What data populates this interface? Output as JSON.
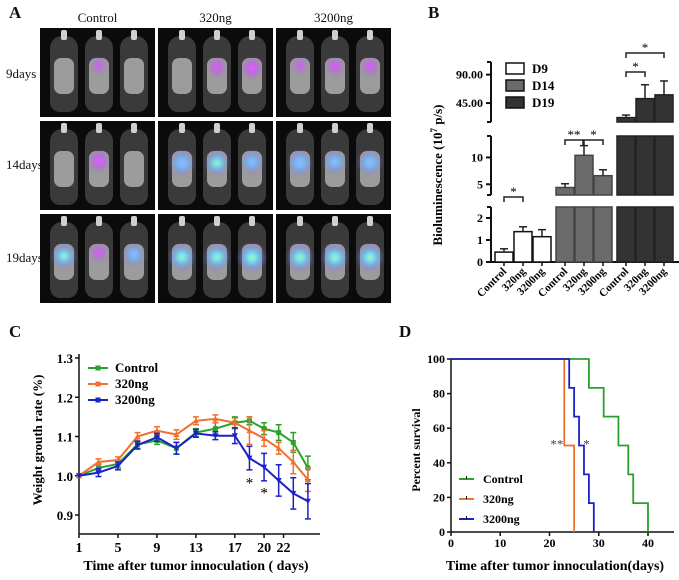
{
  "panels": {
    "A": {
      "letter": "A",
      "columns": [
        "Control",
        "320ng",
        "3200ng"
      ],
      "rows": [
        "9days",
        "14days",
        "19days"
      ],
      "signal_intensity": [
        [
          [
            0.05,
            0.15,
            0.05
          ],
          [
            0.1,
            0.35,
            0.45
          ],
          [
            0.15,
            0.3,
            0.25
          ]
        ],
        [
          [
            0.05,
            0.45,
            0.05
          ],
          [
            0.7,
            0.75,
            0.6
          ],
          [
            0.7,
            0.6,
            0.65
          ]
        ],
        [
          [
            0.75,
            0.3,
            0.55
          ],
          [
            0.85,
            0.85,
            0.95
          ],
          [
            0.9,
            0.9,
            0.9
          ]
        ]
      ]
    },
    "B": {
      "letter": "B"
    },
    "C": {
      "letter": "C"
    },
    "D": {
      "letter": "D"
    }
  },
  "chart_data": [
    {
      "id": "B",
      "type": "bar",
      "ylabel": "Bioluminescence (10^7 p/s)",
      "ylabel_base": "Bioluminescence (10",
      "ylabel_exp": "7",
      "ylabel_tail": " p/s)",
      "broken_axis_segments": [
        {
          "range": [
            0,
            2.5
          ],
          "ticks": [
            "0",
            "1",
            "2"
          ],
          "tick_values": [
            0,
            1,
            2
          ]
        },
        {
          "range": [
            3,
            14
          ],
          "ticks": [
            "5",
            "10"
          ],
          "tick_values": [
            5,
            10
          ]
        },
        {
          "range": [
            15,
            110
          ],
          "ticks": [
            "45.00",
            "90.00"
          ],
          "tick_values": [
            45,
            90
          ]
        }
      ],
      "groups": [
        "D9",
        "D14",
        "D19"
      ],
      "categories": [
        "Control",
        "320ng",
        "3200ng",
        "Control",
        "320ng",
        "3200ng",
        "Control",
        "320ng",
        "3200ng"
      ],
      "legend": [
        {
          "name": "D9",
          "color": "#ffffff"
        },
        {
          "name": "D14",
          "color": "#6b6b6b"
        },
        {
          "name": "D19",
          "color": "#333333"
        }
      ],
      "legend_position": "top-left",
      "series": [
        {
          "name": "D9",
          "color": "#ffffff",
          "values": [
            0.45,
            1.38,
            1.15
          ],
          "errors": [
            0.15,
            0.22,
            0.32
          ]
        },
        {
          "name": "D14",
          "color": "#6b6b6b",
          "values": [
            4.4,
            10.4,
            6.6
          ],
          "errors": [
            0.7,
            1.8,
            1.1
          ]
        },
        {
          "name": "D19",
          "color": "#333333",
          "values": [
            22,
            52,
            58
          ],
          "errors": [
            4,
            22,
            22
          ]
        }
      ],
      "significance": [
        {
          "group": "D9",
          "from": "Control",
          "to": "320ng",
          "label": "*"
        },
        {
          "group": "D14",
          "from": "Control",
          "to": "320ng",
          "label": "**"
        },
        {
          "group": "D14",
          "from": "320ng",
          "to": "3200ng",
          "label": "*"
        },
        {
          "group": "D19",
          "from": "Control",
          "to": "320ng",
          "label": "*"
        },
        {
          "group": "D19",
          "from": "Control",
          "to": "3200ng",
          "label": "*"
        }
      ]
    },
    {
      "id": "C",
      "type": "line",
      "xlabel": "Time after tumor innoculation ( days)",
      "ylabel": "Weight grouth rate (%)",
      "xlim": [
        1,
        25
      ],
      "ylim": [
        0.85,
        1.3
      ],
      "xticks": [
        1,
        5,
        9,
        13,
        17,
        20,
        22
      ],
      "xtick_labels": [
        "1",
        "5",
        "9",
        "13",
        "17",
        "20",
        "22"
      ],
      "yticks": [
        0.9,
        1.0,
        1.1,
        1.2,
        1.3
      ],
      "ytick_labels": [
        "0.9",
        "1.0",
        "1.1",
        "1.2",
        "1.3"
      ],
      "x": [
        1,
        3,
        5,
        7,
        9,
        11,
        13,
        15,
        17,
        18.5,
        20,
        21.5,
        23,
        24.5
      ],
      "legend_position": "top-left",
      "series": [
        {
          "name": "Control",
          "color": "#2ca02c",
          "marker": "square",
          "values": [
            1.0,
            1.02,
            1.03,
            1.08,
            1.09,
            1.07,
            1.11,
            1.12,
            1.135,
            1.14,
            1.12,
            1.11,
            1.085,
            1.02
          ],
          "errors": [
            0,
            0.01,
            0.01,
            0.01,
            0.01,
            0.015,
            0.01,
            0.015,
            0.015,
            0.01,
            0.015,
            0.02,
            0.025,
            0.03
          ]
        },
        {
          "name": "320ng",
          "color": "#f07030",
          "marker": "triangle-up",
          "values": [
            1.0,
            1.035,
            1.04,
            1.1,
            1.115,
            1.105,
            1.14,
            1.145,
            1.135,
            1.115,
            1.095,
            1.07,
            1.035,
            0.99
          ],
          "errors": [
            0,
            0.008,
            0.008,
            0.01,
            0.01,
            0.012,
            0.01,
            0.01,
            0.012,
            0.035,
            0.02,
            0.015,
            0.03,
            0.03
          ]
        },
        {
          "name": "3200ng",
          "color": "#1a22c8",
          "marker": "triangle-down",
          "values": [
            1.0,
            1.008,
            1.025,
            1.078,
            1.098,
            1.07,
            1.108,
            1.102,
            1.102,
            1.045,
            1.022,
            0.988,
            0.955,
            0.935
          ],
          "errors": [
            0,
            0.01,
            0.01,
            0.01,
            0.01,
            0.015,
            0.01,
            0.01,
            0.02,
            0.03,
            0.035,
            0.04,
            0.04,
            0.045
          ]
        }
      ],
      "annotations": [
        {
          "x": 18.5,
          "y": 0.995,
          "text": "*"
        },
        {
          "x": 20,
          "y": 0.97,
          "text": "*"
        }
      ]
    },
    {
      "id": "D",
      "type": "line",
      "subtype": "kaplan-meier",
      "xlabel": "Time after tumor innoculation(days)",
      "ylabel": "Percent survival",
      "xlim": [
        0,
        45
      ],
      "ylim": [
        0,
        100
      ],
      "xticks": [
        0,
        10,
        20,
        30,
        40
      ],
      "xtick_labels": [
        "0",
        "10",
        "20",
        "30",
        "40"
      ],
      "yticks": [
        0,
        20,
        40,
        60,
        80,
        100
      ],
      "ytick_labels": [
        "0",
        "20",
        "40",
        "60",
        "80",
        "100"
      ],
      "legend_position": "bottom-left",
      "series": [
        {
          "name": "Control",
          "color": "#2ca02c",
          "steps": [
            [
              0,
              100
            ],
            [
              28,
              100
            ],
            [
              28,
              83.3
            ],
            [
              31,
              83.3
            ],
            [
              31,
              66.7
            ],
            [
              34,
              66.7
            ],
            [
              34,
              50
            ],
            [
              36,
              50
            ],
            [
              36,
              33.3
            ],
            [
              37,
              33.3
            ],
            [
              37,
              16.7
            ],
            [
              40,
              16.7
            ],
            [
              40,
              0
            ]
          ]
        },
        {
          "name": "320ng",
          "color": "#f07030",
          "steps": [
            [
              0,
              100
            ],
            [
              23,
              100
            ],
            [
              23,
              50
            ],
            [
              25,
              50
            ],
            [
              25,
              0
            ]
          ]
        },
        {
          "name": "3200ng",
          "color": "#1a22c8",
          "steps": [
            [
              0,
              100
            ],
            [
              24,
              100
            ],
            [
              24,
              83.3
            ],
            [
              25,
              83.3
            ],
            [
              25,
              66.7
            ],
            [
              26,
              66.7
            ],
            [
              26,
              50
            ],
            [
              27,
              50
            ],
            [
              27,
              33.3
            ],
            [
              28,
              33.3
            ],
            [
              28,
              16.7
            ],
            [
              29,
              16.7
            ],
            [
              29,
              0
            ]
          ]
        }
      ],
      "annotations": [
        {
          "x": 21.5,
          "y": 53,
          "text": "**"
        },
        {
          "x": 27.5,
          "y": 53,
          "text": "*"
        }
      ]
    }
  ]
}
